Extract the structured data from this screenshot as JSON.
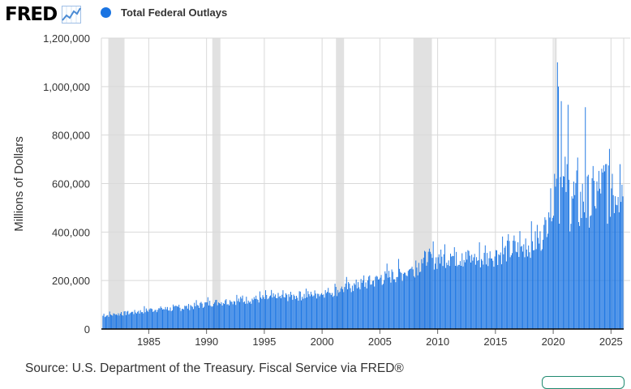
{
  "logo": {
    "text": "FRED",
    "icon": "line-chart-icon",
    "icon_color": "#4b8bd4"
  },
  "legend": {
    "label": "Total Federal Outlays",
    "color": "#1a74e2"
  },
  "source": "Source: U.S. Department of the Treasury. Fiscal Service via FRED®",
  "chart_data": {
    "type": "bar",
    "title": "",
    "series": [
      {
        "name": "Total Federal Outlays",
        "color": "#1a74e2"
      }
    ],
    "ylabel": "Millions of Dollars",
    "xlabel": "",
    "yticks": [
      "0",
      "200,000",
      "400,000",
      "600,000",
      "800,000",
      "1,000,000",
      "1,200,000"
    ],
    "xticks": [
      "1985",
      "1990",
      "1995",
      "2000",
      "2005",
      "2010",
      "2015",
      "2020",
      "2025"
    ],
    "ylim": [
      0,
      1200000
    ],
    "xlim": [
      1980.9,
      2026.1
    ],
    "grid": true,
    "recessions": [
      [
        1981.5,
        1982.9
      ],
      [
        1990.5,
        1991.2
      ],
      [
        2001.2,
        2001.9
      ],
      [
        2007.9,
        2009.5
      ],
      [
        2020.1,
        2020.3
      ]
    ],
    "recession_color": "#e1e1e1",
    "annual_trend": [
      [
        1981,
        55000
      ],
      [
        1982,
        60000
      ],
      [
        1983,
        65000
      ],
      [
        1984,
        70000
      ],
      [
        1985,
        78000
      ],
      [
        1986,
        82000
      ],
      [
        1987,
        83000
      ],
      [
        1988,
        88000
      ],
      [
        1989,
        95000
      ],
      [
        1990,
        105000
      ],
      [
        1991,
        110000
      ],
      [
        1992,
        115000
      ],
      [
        1993,
        118000
      ],
      [
        1994,
        122000
      ],
      [
        1995,
        125000
      ],
      [
        1996,
        130000
      ],
      [
        1997,
        133000
      ],
      [
        1998,
        137000
      ],
      [
        1999,
        140000
      ],
      [
        2000,
        148000
      ],
      [
        2001,
        155000
      ],
      [
        2002,
        168000
      ],
      [
        2003,
        180000
      ],
      [
        2004,
        190000
      ],
      [
        2005,
        205000
      ],
      [
        2006,
        220000
      ],
      [
        2007,
        230000
      ],
      [
        2008,
        250000
      ],
      [
        2009,
        290000
      ],
      [
        2010,
        285000
      ],
      [
        2011,
        300000
      ],
      [
        2012,
        295000
      ],
      [
        2013,
        285000
      ],
      [
        2014,
        290000
      ],
      [
        2015,
        305000
      ],
      [
        2016,
        320000
      ],
      [
        2017,
        330000
      ],
      [
        2018,
        345000
      ],
      [
        2019,
        370000
      ],
      [
        2020,
        550000
      ],
      [
        2021,
        570000
      ],
      [
        2022,
        520000
      ],
      [
        2023,
        510000
      ],
      [
        2024,
        560000
      ],
      [
        2025,
        590000
      ],
      [
        2026,
        600000
      ]
    ],
    "peaks": [
      [
        2020.33,
        1100000
      ],
      [
        2020.42,
        1000000
      ],
      [
        2020.67,
        940000
      ],
      [
        2021.25,
        925000
      ],
      [
        2022.75,
        915000
      ],
      [
        2020.25,
        620000
      ],
      [
        2024.5,
        680000
      ],
      [
        2025.75,
        680000
      ]
    ]
  }
}
